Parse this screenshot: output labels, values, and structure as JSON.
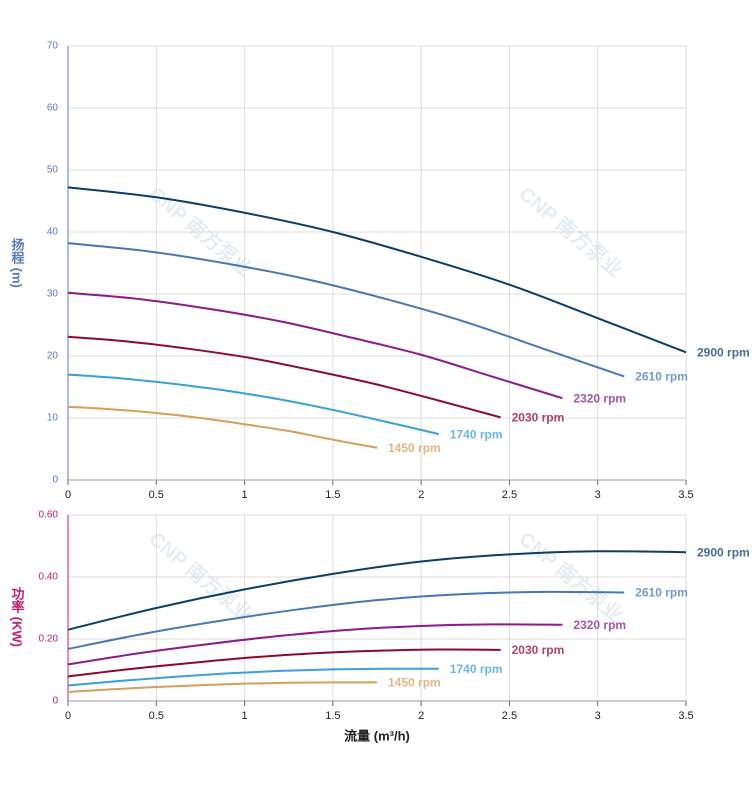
{
  "chart_data": [
    {
      "type": "line",
      "y_label": "扬程 (m)",
      "watermark": "CNP 南方泵业",
      "grid": true,
      "xlim": [
        0,
        3.5
      ],
      "xticks": [
        0,
        0.5,
        1,
        1.5,
        2,
        2.5,
        3,
        3.5
      ],
      "ylim": [
        0,
        70
      ],
      "yticks": [
        0,
        10,
        20,
        30,
        40,
        50,
        60,
        70
      ],
      "series": [
        {
          "name": "2900 rpm",
          "color": "#0d3d66",
          "x": [
            0,
            0.5,
            1,
            1.5,
            2,
            2.5,
            3,
            3.5
          ],
          "values": [
            47.2,
            45.6,
            43.1,
            40.0,
            36.0,
            31.5,
            26.1,
            20.6
          ]
        },
        {
          "name": "2610 rpm",
          "color": "#4a76b8",
          "x": [
            0,
            0.45,
            0.9,
            1.35,
            1.8,
            2.25,
            2.7,
            3.15
          ],
          "values": [
            38.2,
            36.9,
            34.9,
            32.4,
            29.2,
            25.5,
            21.1,
            16.7
          ]
        },
        {
          "name": "2320 rpm",
          "color": "#8b1a8b",
          "x": [
            0,
            0.4,
            0.8,
            1.2,
            1.6,
            2.0,
            2.4,
            2.8
          ],
          "values": [
            30.2,
            29.2,
            27.6,
            25.6,
            23.0,
            20.2,
            16.7,
            13.2
          ]
        },
        {
          "name": "2030 rpm",
          "color": "#8b0a2e",
          "x": [
            0,
            0.35,
            0.7,
            1.05,
            1.4,
            1.75,
            2.1,
            2.45
          ],
          "values": [
            23.1,
            22.3,
            21.1,
            19.6,
            17.6,
            15.4,
            12.8,
            10.1
          ]
        },
        {
          "name": "1740 rpm",
          "color": "#3aa0d8",
          "x": [
            0,
            0.3,
            0.6,
            0.9,
            1.2,
            1.5,
            1.8,
            2.1
          ],
          "values": [
            17.0,
            16.4,
            15.5,
            14.4,
            13.0,
            11.3,
            9.4,
            7.4
          ]
        },
        {
          "name": "1450 rpm",
          "color": "#d4a05c",
          "x": [
            0,
            0.25,
            0.5,
            0.75,
            1.0,
            1.25,
            1.5,
            1.75
          ],
          "values": [
            11.8,
            11.4,
            10.8,
            10.0,
            9.0,
            7.9,
            6.5,
            5.2
          ]
        }
      ]
    },
    {
      "type": "line",
      "y_label": "功率 (KW)",
      "x_label": "流量 (m³/h)",
      "watermark": "CNP 南方泵业",
      "grid": true,
      "xlim": [
        0,
        3.5
      ],
      "xticks": [
        0,
        0.5,
        1,
        1.5,
        2,
        2.5,
        3,
        3.5
      ],
      "ylim": [
        0,
        0.6
      ],
      "yticks": [
        0,
        {
          "value": 0.2,
          "label": "0.20"
        },
        {
          "value": 0.4,
          "label": "0.40"
        },
        {
          "value": 0.6,
          "label": "0.60"
        }
      ],
      "series": [
        {
          "name": "2900 rpm",
          "color": "#0d3d66",
          "x": [
            0,
            0.5,
            1,
            1.5,
            2,
            2.5,
            3,
            3.5
          ],
          "values": [
            0.23,
            0.3,
            0.36,
            0.41,
            0.45,
            0.473,
            0.483,
            0.48
          ]
        },
        {
          "name": "2610 rpm",
          "color": "#4a76b8",
          "x": [
            0,
            0.45,
            0.9,
            1.35,
            1.8,
            2.25,
            2.7,
            3.15
          ],
          "values": [
            0.168,
            0.219,
            0.262,
            0.299,
            0.328,
            0.345,
            0.352,
            0.35
          ]
        },
        {
          "name": "2320 rpm",
          "color": "#8b1a8b",
          "x": [
            0,
            0.4,
            0.8,
            1.2,
            1.6,
            2.0,
            2.4,
            2.8
          ],
          "values": [
            0.118,
            0.154,
            0.184,
            0.21,
            0.23,
            0.242,
            0.247,
            0.246
          ]
        },
        {
          "name": "2030 rpm",
          "color": "#8b0a2e",
          "x": [
            0,
            0.35,
            0.7,
            1.05,
            1.4,
            1.75,
            2.1,
            2.45
          ],
          "values": [
            0.079,
            0.103,
            0.123,
            0.141,
            0.154,
            0.162,
            0.166,
            0.165
          ]
        },
        {
          "name": "1740 rpm",
          "color": "#3aa0d8",
          "x": [
            0,
            0.3,
            0.6,
            0.9,
            1.2,
            1.5,
            1.8,
            2.1
          ],
          "values": [
            0.05,
            0.065,
            0.078,
            0.089,
            0.097,
            0.102,
            0.104,
            0.104
          ]
        },
        {
          "name": "1450 rpm",
          "color": "#d4a05c",
          "x": [
            0,
            0.25,
            0.5,
            0.75,
            1.0,
            1.25,
            1.5,
            1.75
          ],
          "values": [
            0.029,
            0.038,
            0.045,
            0.051,
            0.056,
            0.059,
            0.06,
            0.06
          ]
        }
      ]
    }
  ]
}
